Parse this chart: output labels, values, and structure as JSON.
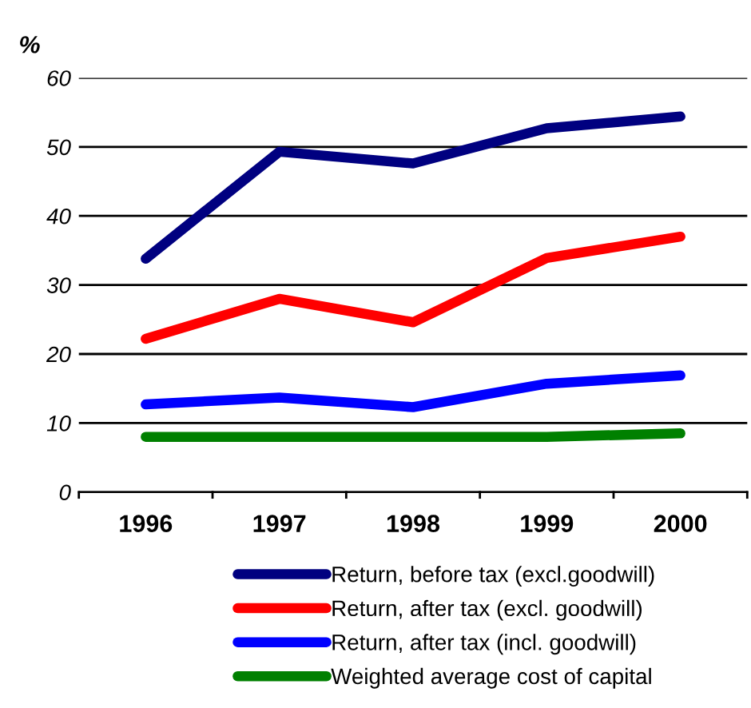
{
  "chart_data": {
    "type": "line",
    "ylabel": "%",
    "categories": [
      "1996",
      "1997",
      "1998",
      "1999",
      "2000"
    ],
    "series": [
      {
        "name": "Return, before tax (excl.goodwill)",
        "color": "#000080",
        "values": [
          33.8,
          49.3,
          47.6,
          52.7,
          54.4
        ]
      },
      {
        "name": "Return, after tax (excl. goodwill)",
        "color": "#ff0000",
        "values": [
          22.2,
          28.0,
          24.6,
          33.9,
          37.0
        ]
      },
      {
        "name": "Return, after tax (incl. goodwill)",
        "color": "#0000ff",
        "values": [
          12.7,
          13.7,
          12.3,
          15.7,
          16.9
        ]
      },
      {
        "name": "Weighted average cost of capital",
        "color": "#008000",
        "values": [
          8.0,
          8.0,
          8.0,
          8.0,
          8.5
        ]
      }
    ],
    "ylim": [
      0,
      60
    ],
    "yticks": [
      0,
      10,
      20,
      30,
      40,
      50,
      60
    ],
    "grid": "y",
    "legend": "bottom",
    "marker": "none",
    "line_style": "solid"
  }
}
